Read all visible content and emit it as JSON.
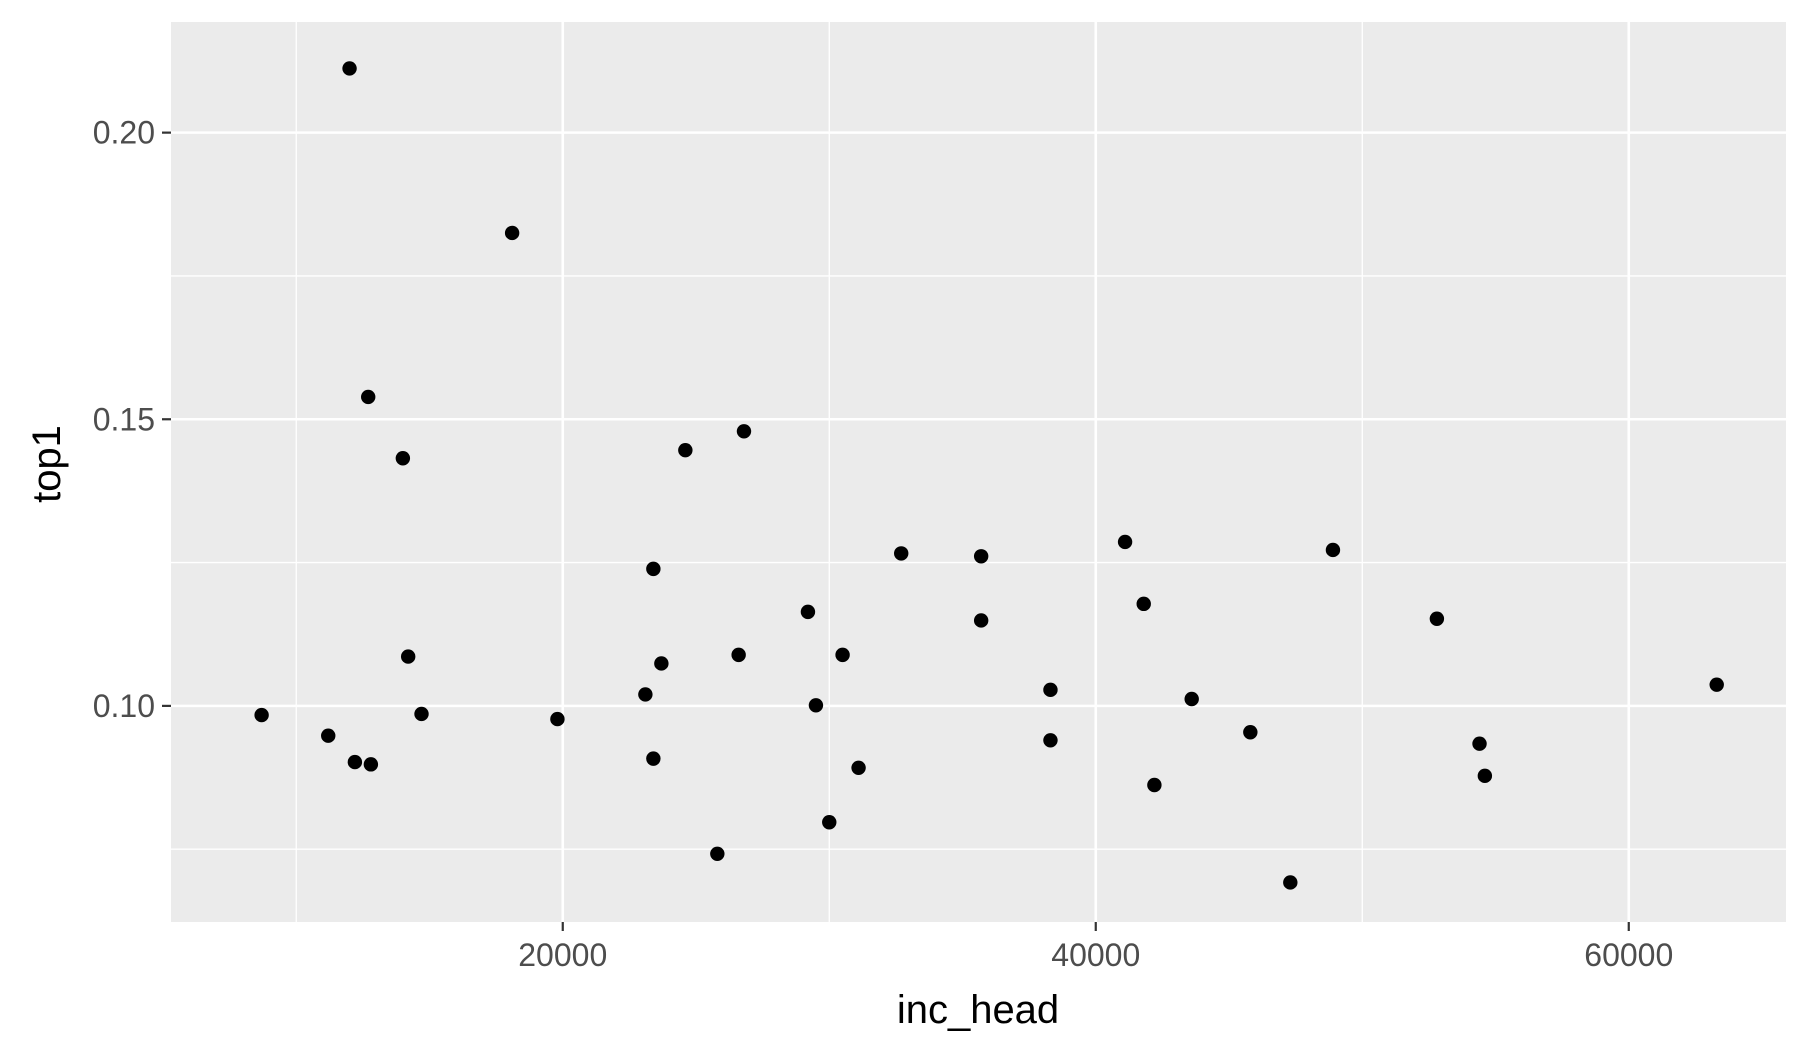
{
  "chart_data": {
    "type": "scatter",
    "xlabel": "inc_head",
    "ylabel": "top1",
    "xlim": [
      5300,
      65900
    ],
    "ylim": [
      0.0623,
      0.2193
    ],
    "x_ticks": [
      {
        "value": 20000,
        "label": "20000"
      },
      {
        "value": 40000,
        "label": "40000"
      },
      {
        "value": 60000,
        "label": "60000"
      }
    ],
    "x_minor_ticks": [
      10000,
      30000,
      50000
    ],
    "y_ticks": [
      {
        "value": 0.1,
        "label": "0.10"
      },
      {
        "value": 0.15,
        "label": "0.15"
      },
      {
        "value": 0.2,
        "label": "0.20"
      }
    ],
    "y_minor_ticks": [
      0.075,
      0.125,
      0.175
    ],
    "grid": true,
    "colors": {
      "panel_background": "#ebebeb",
      "grid_major": "#ffffff",
      "grid_minor": "#f7f7f7",
      "point": "#000000",
      "tick_mark": "#333333"
    },
    "points": [
      {
        "x": 8700,
        "y": 0.0984
      },
      {
        "x": 11200,
        "y": 0.0948
      },
      {
        "x": 12000,
        "y": 0.2112
      },
      {
        "x": 12200,
        "y": 0.0902
      },
      {
        "x": 12700,
        "y": 0.1539
      },
      {
        "x": 12800,
        "y": 0.0898
      },
      {
        "x": 14000,
        "y": 0.1432
      },
      {
        "x": 14200,
        "y": 0.1086
      },
      {
        "x": 14700,
        "y": 0.0986
      },
      {
        "x": 18100,
        "y": 0.1825
      },
      {
        "x": 19800,
        "y": 0.0977
      },
      {
        "x": 23100,
        "y": 0.102
      },
      {
        "x": 23400,
        "y": 0.0908
      },
      {
        "x": 23400,
        "y": 0.1239
      },
      {
        "x": 23700,
        "y": 0.1074
      },
      {
        "x": 24600,
        "y": 0.1446
      },
      {
        "x": 25800,
        "y": 0.0742
      },
      {
        "x": 26600,
        "y": 0.1089
      },
      {
        "x": 26800,
        "y": 0.1479
      },
      {
        "x": 29200,
        "y": 0.1164
      },
      {
        "x": 29500,
        "y": 0.1001
      },
      {
        "x": 30000,
        "y": 0.0797
      },
      {
        "x": 30500,
        "y": 0.1089
      },
      {
        "x": 31100,
        "y": 0.0892
      },
      {
        "x": 32700,
        "y": 0.1266
      },
      {
        "x": 35700,
        "y": 0.1149
      },
      {
        "x": 35700,
        "y": 0.1261
      },
      {
        "x": 38300,
        "y": 0.094
      },
      {
        "x": 38300,
        "y": 0.1028
      },
      {
        "x": 41100,
        "y": 0.1286
      },
      {
        "x": 41800,
        "y": 0.1178
      },
      {
        "x": 42200,
        "y": 0.0862
      },
      {
        "x": 43600,
        "y": 0.1012
      },
      {
        "x": 45800,
        "y": 0.0954
      },
      {
        "x": 47300,
        "y": 0.0692
      },
      {
        "x": 48900,
        "y": 0.1272
      },
      {
        "x": 52800,
        "y": 0.1152
      },
      {
        "x": 54400,
        "y": 0.0934
      },
      {
        "x": 54600,
        "y": 0.0878
      },
      {
        "x": 63300,
        "y": 0.1037
      }
    ]
  }
}
